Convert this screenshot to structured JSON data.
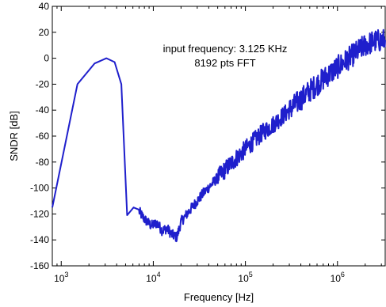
{
  "chart_data": {
    "type": "line",
    "title": "",
    "xlabel": "Frequency [Hz]",
    "ylabel": "SNDR [dB]",
    "xscale": "log",
    "xlim": [
      800,
      3300000
    ],
    "ylim": [
      -160,
      40
    ],
    "grid": false,
    "line_color": "#1f1fcc",
    "yticks": [
      40,
      20,
      0,
      -20,
      -40,
      -60,
      -80,
      -100,
      -120,
      -140,
      -160
    ],
    "ytick_labels": [
      "40",
      "20",
      "0",
      "-20",
      "-40",
      "-60",
      "-80",
      "-100",
      "-120",
      "-140",
      "-160"
    ],
    "xticks": [
      {
        "value": 1000,
        "base": "10",
        "exp": "3"
      },
      {
        "value": 10000,
        "base": "10",
        "exp": "4"
      },
      {
        "value": 100000,
        "base": "10",
        "exp": "5"
      },
      {
        "value": 1000000,
        "base": "10",
        "exp": "6"
      }
    ],
    "annotations": [
      "input frequency: 3.125 KHz",
      "8192 pts FFT"
    ],
    "series": [
      {
        "x": [
          800,
          1500,
          2300,
          3100,
          3800,
          4500,
          5200,
          6100,
          7000,
          8000,
          9500,
          11000,
          12500,
          14000,
          16000,
          18000,
          20000,
          25000,
          35000,
          50000,
          70000,
          100000,
          150000,
          200000,
          300000,
          500000,
          700000,
          1000000,
          1500000,
          2000000,
          2500000,
          3300000
        ],
        "y": [
          -115,
          -20,
          -4,
          0,
          -3,
          -20,
          -121,
          -115,
          -118,
          -124,
          -129,
          -127,
          -133,
          -131,
          -136,
          -138,
          -126,
          -117,
          -104,
          -92,
          -81,
          -70,
          -58,
          -51,
          -40,
          -25,
          -16,
          -7,
          3,
          10,
          13,
          14
        ]
      }
    ]
  }
}
